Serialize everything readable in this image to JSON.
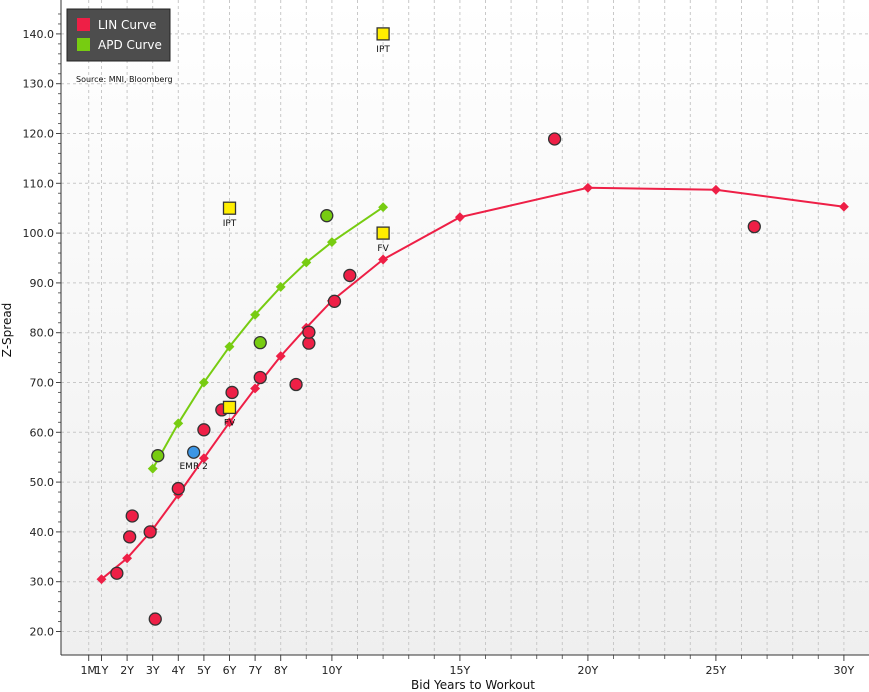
{
  "chart_data": {
    "type": "scatter",
    "title": "",
    "xlabel": "Bid Years to Workout",
    "ylabel": "Z-Spread",
    "xlim": [
      -0.5,
      31
    ],
    "ylim": [
      15,
      147
    ],
    "source": "Source: MNI, Bloomberg",
    "colors": {
      "lin": "#ee1f46",
      "apd": "#77cc11",
      "ipt": "#ffee00",
      "emr": "#3c96e6",
      "grid": "#c8c8c8",
      "legend_bg": "#4d4d4d"
    },
    "x_ticks": [
      {
        "value": 0.5,
        "label": "1M"
      },
      {
        "value": 1,
        "label": "1Y"
      },
      {
        "value": 2,
        "label": "2Y"
      },
      {
        "value": 3,
        "label": "3Y"
      },
      {
        "value": 4,
        "label": "4Y"
      },
      {
        "value": 5,
        "label": "5Y"
      },
      {
        "value": 6,
        "label": "6Y"
      },
      {
        "value": 7,
        "label": "7Y"
      },
      {
        "value": 8,
        "label": "8Y"
      },
      {
        "value": 10,
        "label": "10Y"
      },
      {
        "value": 15,
        "label": "15Y"
      },
      {
        "value": 20,
        "label": "20Y"
      },
      {
        "value": 25,
        "label": "25Y"
      },
      {
        "value": 30,
        "label": "30Y"
      }
    ],
    "x_minor": [
      9,
      11,
      12,
      13,
      14,
      16,
      17,
      18,
      19,
      21,
      22,
      23,
      24,
      26,
      27,
      28,
      29
    ],
    "y_ticks": [
      {
        "value": 20,
        "label": "20.0"
      },
      {
        "value": 30,
        "label": "30.0"
      },
      {
        "value": 40,
        "label": "40.0"
      },
      {
        "value": 50,
        "label": "50.0"
      },
      {
        "value": 60,
        "label": "60.0"
      },
      {
        "value": 70,
        "label": "70.0"
      },
      {
        "value": 80,
        "label": "80.0"
      },
      {
        "value": 90,
        "label": "90.0"
      },
      {
        "value": 100,
        "label": "100.0"
      },
      {
        "value": 110,
        "label": "110.0"
      },
      {
        "value": 120,
        "label": "120.0"
      },
      {
        "value": 130,
        "label": "130.0"
      },
      {
        "value": 140,
        "label": "140.0"
      }
    ],
    "legend": [
      {
        "name": "LIN Curve",
        "color": "#ee1f46"
      },
      {
        "name": "APD Curve",
        "color": "#77cc11"
      }
    ],
    "lin_curve": {
      "name": "LIN Curve",
      "x": [
        1,
        2,
        3,
        4,
        5,
        6,
        7,
        8,
        9,
        10,
        12,
        15,
        20,
        25,
        30
      ],
      "y": [
        30.5,
        34.7,
        40.5,
        47.5,
        54.8,
        62.0,
        68.8,
        75.3,
        81.0,
        86.4,
        94.7,
        103.2,
        109.1,
        108.7,
        105.3
      ]
    },
    "apd_curve": {
      "name": "APD Curve",
      "x": [
        3,
        4,
        5,
        6,
        7,
        8,
        9,
        10,
        12
      ],
      "y": [
        52.7,
        61.8,
        70.0,
        77.2,
        83.6,
        89.2,
        94.1,
        98.2,
        105.2
      ]
    },
    "lin_bonds": {
      "x": [
        1.6,
        2.1,
        2.2,
        2.9,
        3.1,
        4.0,
        5.0,
        5.7,
        6.1,
        7.2,
        8.6,
        9.1,
        9.1,
        10.1,
        10.7,
        18.7,
        26.5
      ],
      "y": [
        31.7,
        39.0,
        43.2,
        40.0,
        22.5,
        48.7,
        60.5,
        64.5,
        68.0,
        71.0,
        69.6,
        77.9,
        80.1,
        86.3,
        91.5,
        118.9,
        101.3
      ]
    },
    "apd_bonds": {
      "x": [
        3.2,
        7.2,
        9.8
      ],
      "y": [
        55.3,
        78.0,
        103.5
      ]
    },
    "new_issues": [
      {
        "x": 6.0,
        "y": 105.0,
        "label": "IPT"
      },
      {
        "x": 12.0,
        "y": 140.0,
        "label": "IPT"
      },
      {
        "x": 12.0,
        "y": 100.0,
        "label": "FV"
      },
      {
        "x": 6.0,
        "y": 65.0,
        "label": "FV"
      }
    ],
    "emr_bond": {
      "x": 4.6,
      "y": 56.0,
      "label": "EMR 2"
    }
  }
}
